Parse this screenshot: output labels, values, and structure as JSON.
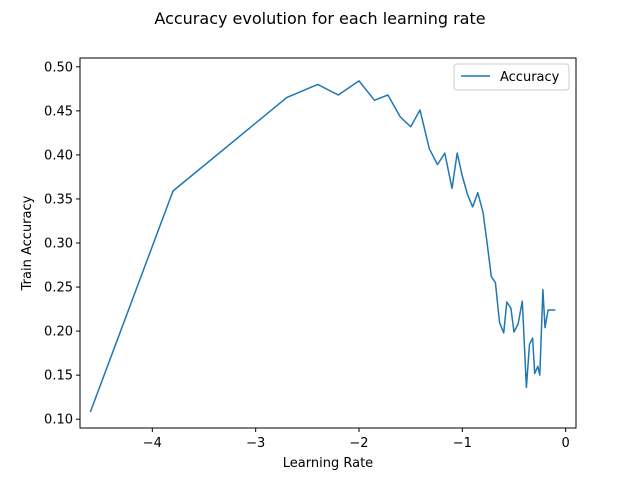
{
  "chart_data": {
    "type": "line",
    "title": "Accuracy evolution for each learning rate",
    "xlabel": "Learning Rate",
    "ylabel": "Train Accuracy",
    "xlim": [
      -4.7,
      0.1
    ],
    "ylim": [
      0.09,
      0.51
    ],
    "xticks": [
      -4,
      -3,
      -2,
      -1,
      0
    ],
    "xtick_labels": [
      "−4",
      "−3",
      "−2",
      "−1",
      "0"
    ],
    "yticks": [
      0.1,
      0.15,
      0.2,
      0.25,
      0.3,
      0.35,
      0.4,
      0.45,
      0.5
    ],
    "ytick_labels": [
      "0.10",
      "0.15",
      "0.20",
      "0.25",
      "0.30",
      "0.35",
      "0.40",
      "0.45",
      "0.50"
    ],
    "legend": {
      "position": "top-right",
      "entries": [
        "Accuracy"
      ]
    },
    "grid": false,
    "color": "#1f77b4",
    "series": [
      {
        "name": "Accuracy",
        "x": [
          -4.6,
          -3.8,
          -2.7,
          -2.4,
          -2.2,
          -2.0,
          -1.85,
          -1.72,
          -1.6,
          -1.5,
          -1.41,
          -1.32,
          -1.24,
          -1.17,
          -1.1,
          -1.05,
          -1.0,
          -0.95,
          -0.9,
          -0.85,
          -0.8,
          -0.76,
          -0.72,
          -0.68,
          -0.64,
          -0.6,
          -0.57,
          -0.53,
          -0.5,
          -0.46,
          -0.42,
          -0.38,
          -0.35,
          -0.32,
          -0.3,
          -0.27,
          -0.25,
          -0.22,
          -0.2,
          -0.17,
          -0.15,
          -0.12,
          -0.1
        ],
        "y": [
          0.108,
          0.359,
          0.465,
          0.48,
          0.468,
          0.484,
          0.462,
          0.468,
          0.443,
          0.432,
          0.451,
          0.407,
          0.389,
          0.402,
          0.362,
          0.402,
          0.376,
          0.355,
          0.341,
          0.357,
          0.335,
          0.3,
          0.262,
          0.255,
          0.21,
          0.198,
          0.233,
          0.226,
          0.199,
          0.208,
          0.234,
          0.136,
          0.185,
          0.192,
          0.152,
          0.16,
          0.15,
          0.247,
          0.204,
          0.224,
          0.224,
          0.224,
          0.224
        ]
      }
    ]
  }
}
